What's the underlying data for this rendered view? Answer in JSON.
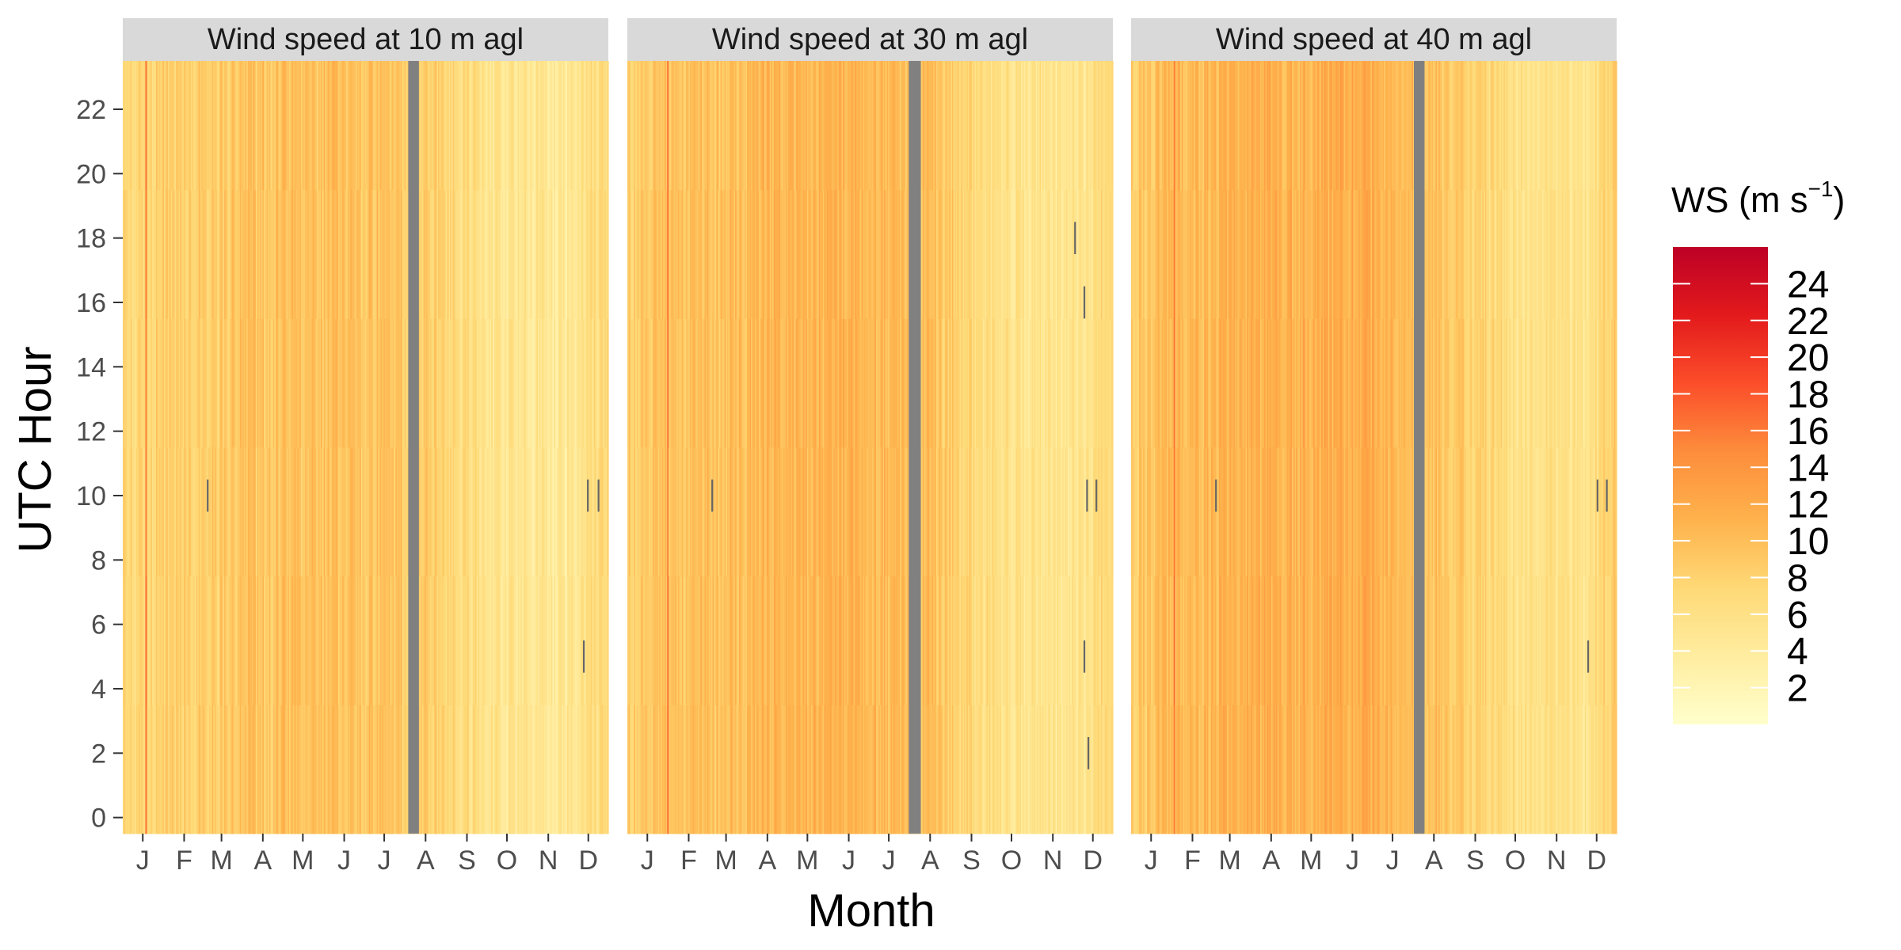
{
  "chart_data": {
    "type": "heatmap",
    "xlabel": "Month",
    "ylabel": "UTC Hour",
    "x_tick_labels": [
      "J",
      "F",
      "M",
      "A",
      "M",
      "J",
      "J",
      "A",
      "S",
      "O",
      "N",
      "D"
    ],
    "y_ticks": [
      0,
      2,
      4,
      6,
      8,
      10,
      12,
      14,
      16,
      18,
      20,
      22
    ],
    "ylim": [
      -0.5,
      23.5
    ],
    "x_range_days": [
      1,
      365
    ],
    "panels": [
      {
        "title": "Wind speed at 10 m agl",
        "mean_ws": 7.2,
        "peak_days": [
          [
            50,
            8.5
          ],
          [
            120,
            9.5
          ],
          [
            175,
            9.5
          ],
          [
            210,
            9.0
          ]
        ],
        "quiet_days": [
          [
            300,
            4.8
          ],
          [
            330,
            4.3
          ]
        ],
        "red_streak_day": 18,
        "missing_block_days": [
          215,
          223
        ],
        "missing_cells": [
          [
            64,
            10
          ],
          [
            349,
            10
          ],
          [
            357,
            10
          ],
          [
            346,
            5
          ]
        ]
      },
      {
        "title": "Wind speed at 30 m agl",
        "mean_ws": 8.3,
        "peak_days": [
          [
            50,
            9.5
          ],
          [
            120,
            10.5
          ],
          [
            170,
            11.0
          ],
          [
            210,
            10.0
          ]
        ],
        "quiet_days": [
          [
            300,
            5.5
          ],
          [
            340,
            4.8
          ]
        ],
        "red_streak_day": 31,
        "missing_block_days": [
          212,
          221
        ],
        "missing_cells": [
          [
            64,
            10
          ],
          [
            336,
            18
          ],
          [
            343,
            16
          ],
          [
            343,
            5
          ],
          [
            346,
            2
          ],
          [
            345,
            10
          ],
          [
            352,
            10
          ]
        ]
      },
      {
        "title": "Wind speed at 40 m agl",
        "mean_ws": 8.8,
        "peak_days": [
          [
            35,
            10.5
          ],
          [
            120,
            11.0
          ],
          [
            170,
            11.5
          ],
          [
            205,
            10.5
          ]
        ],
        "quiet_days": [
          [
            300,
            6.0
          ],
          [
            340,
            5.2
          ]
        ],
        "red_streak_day": 33,
        "missing_block_days": [
          213,
          221
        ],
        "missing_cells": [
          [
            64,
            10
          ],
          [
            350,
            10
          ],
          [
            357,
            10
          ],
          [
            343,
            5
          ]
        ]
      }
    ],
    "legend": {
      "title_main": "WS (m s",
      "title_sup": "−1",
      "title_close": ")",
      "ticks": [
        2,
        4,
        6,
        8,
        10,
        12,
        14,
        16,
        18,
        20,
        22,
        24
      ],
      "range": [
        0,
        26
      ],
      "position": "right"
    },
    "color_scale": [
      "#ffffcc",
      "#ffeda0",
      "#fed976",
      "#feb24c",
      "#fd8d3c",
      "#fc4e2a",
      "#e31a1c",
      "#bd0026"
    ],
    "missing_color": "#808080",
    "strip_color": "#d9d9d9"
  }
}
